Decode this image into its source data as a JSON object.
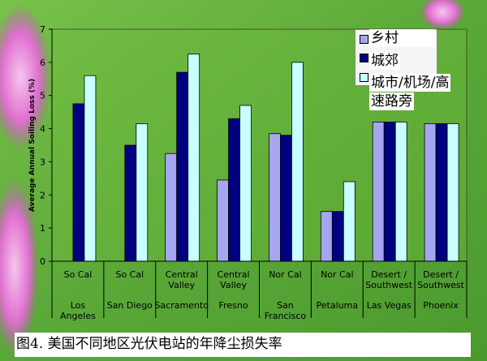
{
  "colors": {
    "rural": "#a6a6f0",
    "suburban": "#000080",
    "urban": "#c8ffff",
    "plot_bg": "#6fbd3d",
    "grid": "#3a5a22"
  },
  "chart_data": {
    "type": "bar",
    "ylabel": "Average Annual Soiling Loss (%)",
    "ylim": [
      0,
      7
    ],
    "yticks": [
      0,
      1,
      2,
      3,
      4,
      5,
      6,
      7
    ],
    "grid": false,
    "legend_position": "top-right",
    "categories": [
      {
        "region": [
          "So Cal"
        ],
        "city": [
          "Los",
          "Angeles"
        ]
      },
      {
        "region": [
          "So Cal"
        ],
        "city": [
          "San Diego"
        ]
      },
      {
        "region": [
          "Central",
          "Valley"
        ],
        "city": [
          "Sacramento"
        ]
      },
      {
        "region": [
          "Central",
          "Valley"
        ],
        "city": [
          "Fresno"
        ]
      },
      {
        "region": [
          "Nor Cal"
        ],
        "city": [
          "San",
          "Francisco"
        ]
      },
      {
        "region": [
          "Nor Cal"
        ],
        "city": [
          "Petaluma"
        ]
      },
      {
        "region": [
          "Desert /",
          "Southwest"
        ],
        "city": [
          "Las Vegas"
        ]
      },
      {
        "region": [
          "Desert /",
          "Southwest"
        ],
        "city": [
          "Phoenix"
        ]
      }
    ],
    "series": [
      {
        "name": "乡村",
        "color_key": "rural",
        "values": [
          null,
          null,
          3.25,
          2.45,
          3.85,
          1.5,
          4.2,
          4.15
        ]
      },
      {
        "name": "城郊",
        "color_key": "suburban",
        "values": [
          4.75,
          3.5,
          5.7,
          4.3,
          3.8,
          1.5,
          4.2,
          4.15
        ]
      },
      {
        "name": "城市/机场/高速路旁",
        "color_key": "urban",
        "values": [
          5.6,
          4.15,
          6.25,
          4.7,
          6.0,
          2.4,
          4.2,
          4.15
        ]
      }
    ]
  },
  "legend": {
    "rural_label": "乡村",
    "suburban_label": "城郊",
    "urban_label_line1": "城市/机场/高",
    "urban_label_line2": "速路旁"
  },
  "caption": "图4. 美国不同地区光伏电站的年降尘损失率"
}
